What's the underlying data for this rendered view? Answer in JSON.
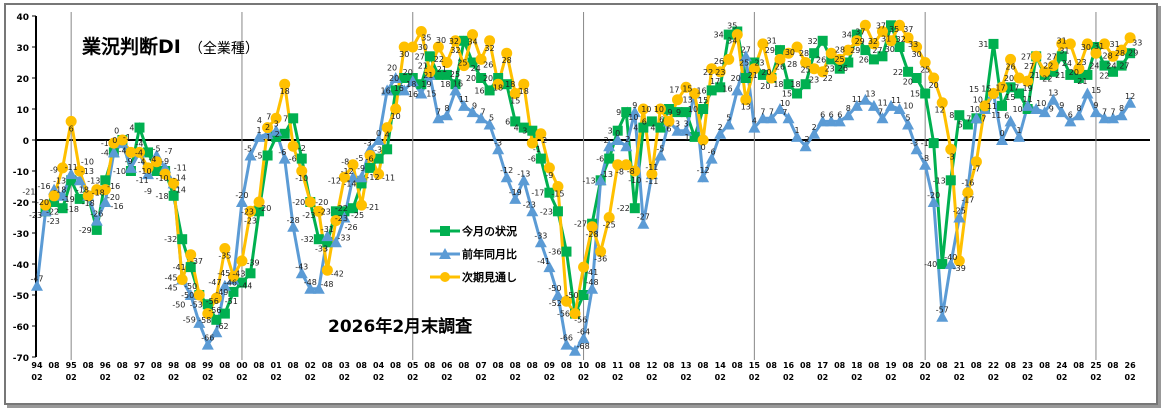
{
  "chart_data": {
    "type": "line",
    "title": "業況判断DI",
    "title_note": "（全業種）",
    "subtitle": "2026年2月末調査",
    "ylim": [
      -70,
      40
    ],
    "yticks": [
      40,
      30,
      20,
      10,
      0,
      -10,
      -20,
      -30,
      -40,
      -50,
      -60,
      -70
    ],
    "x_start": "1994-02",
    "x_frequency": "quarterly",
    "x_year_labels": [
      "94",
      "95",
      "96",
      "97",
      "98",
      "99",
      "00",
      "01",
      "02",
      "03",
      "04",
      "05",
      "06",
      "07",
      "08",
      "09",
      "10",
      "11",
      "12",
      "13",
      "14",
      "15",
      "16",
      "17",
      "18",
      "19",
      "20",
      "21",
      "22",
      "23",
      "24",
      "25",
      "26"
    ],
    "x_month_labels": [
      "02",
      "08"
    ],
    "legend_placement": "center",
    "series": [
      {
        "name": "今月の状況",
        "color": "#00b050",
        "marker": "square",
        "values": [
          null,
          -23,
          -20,
          -22,
          -13,
          -19,
          -18,
          -29,
          -13,
          -4,
          0,
          -10,
          4,
          -4,
          -10,
          -10,
          -18,
          -32,
          -41,
          -50,
          -53,
          -58,
          -56,
          -49,
          -46,
          -43,
          -23,
          -5,
          1,
          2,
          7,
          -6,
          -20,
          -32,
          -33,
          -23,
          -23,
          -22,
          -14,
          -9,
          -6,
          -3,
          16,
          20,
          20,
          18,
          27,
          21,
          21,
          18,
          32,
          25,
          20,
          16,
          20,
          18,
          6,
          4,
          3,
          -6,
          -17,
          -23,
          -36,
          -56,
          -50,
          -27,
          -13,
          -6,
          3,
          9,
          -22,
          4,
          6,
          4,
          10,
          9,
          9,
          1,
          10,
          16,
          17,
          34,
          35,
          20,
          25,
          21,
          20,
          29,
          18,
          15,
          18,
          28,
          32,
          26,
          23,
          25,
          34,
          29,
          26,
          27,
          37,
          30,
          22,
          20,
          15,
          -1,
          -40,
          -13,
          8,
          5,
          7,
          10,
          31,
          11,
          17,
          15,
          10,
          27,
          21,
          22,
          27,
          21,
          20,
          21,
          30,
          24,
          22,
          24,
          28
        ]
      },
      {
        "name": "前年同月比",
        "color": "#5b9bd5",
        "marker": "triangle",
        "values": [
          -47,
          -23,
          -16,
          -18,
          -11,
          -13,
          -18,
          -26,
          -20,
          -4,
          -1,
          -9,
          -4,
          -11,
          -5,
          -9,
          -14,
          -45,
          -50,
          -59,
          -66,
          -62,
          -47,
          -45,
          -20,
          -5,
          1,
          2,
          3,
          -6,
          -28,
          -43,
          -48,
          -48,
          -31,
          -33,
          -25,
          -12,
          -12,
          -3,
          0,
          16,
          20,
          16,
          19,
          15,
          21,
          7,
          8,
          16,
          11,
          9,
          7,
          5,
          -3,
          -12,
          -19,
          -13,
          -23,
          -33,
          -41,
          -50,
          -66,
          -68,
          -64,
          -48,
          -13,
          -2,
          0,
          -2,
          9,
          -27,
          -11,
          -5,
          6,
          3,
          3,
          15,
          -12,
          -6,
          2,
          5,
          16,
          27,
          4,
          7,
          7,
          10,
          7,
          1,
          -2,
          2,
          6,
          6,
          6,
          8,
          11,
          13,
          11,
          7,
          11,
          10,
          5,
          -3,
          -8,
          -20,
          -57,
          -40,
          -25,
          -16,
          7,
          10,
          15,
          0,
          6,
          1,
          11,
          10,
          9,
          13,
          9,
          6,
          8,
          15,
          9,
          7,
          7,
          8,
          12
        ]
      },
      {
        "name": "次期見通し",
        "color": "#ffc000",
        "marker": "circle",
        "values": [
          null,
          -21,
          -18,
          -9,
          6,
          -10,
          -18,
          -16,
          -16,
          -1,
          0,
          -4,
          -4,
          -9,
          -7,
          -11,
          -14,
          -45,
          -37,
          -50,
          -56,
          -51,
          -35,
          -44,
          -39,
          -23,
          -20,
          4,
          7,
          18,
          -2,
          -10,
          -20,
          -23,
          -42,
          -26,
          -12,
          -8,
          -21,
          -5,
          -11,
          4,
          10,
          30,
          30,
          35,
          22,
          30,
          25,
          32,
          24,
          34,
          26,
          32,
          18,
          28,
          15,
          18,
          -1,
          2,
          -9,
          -15,
          -52,
          -56,
          -41,
          -28,
          -36,
          -25,
          -8,
          -8,
          -10,
          10,
          -11,
          10,
          6,
          13,
          17,
          15,
          0,
          23,
          22,
          26,
          34,
          13,
          23,
          31,
          20,
          26,
          28,
          30,
          25,
          23,
          22,
          28,
          26,
          29,
          32,
          37,
          31,
          35,
          32,
          37,
          33,
          30,
          25,
          20,
          12,
          -3,
          -39,
          -17,
          -7,
          11,
          15,
          17,
          26,
          20,
          19,
          27,
          22,
          24,
          31,
          31,
          23,
          31,
          28,
          31,
          27,
          29,
          33
        ]
      }
    ]
  }
}
